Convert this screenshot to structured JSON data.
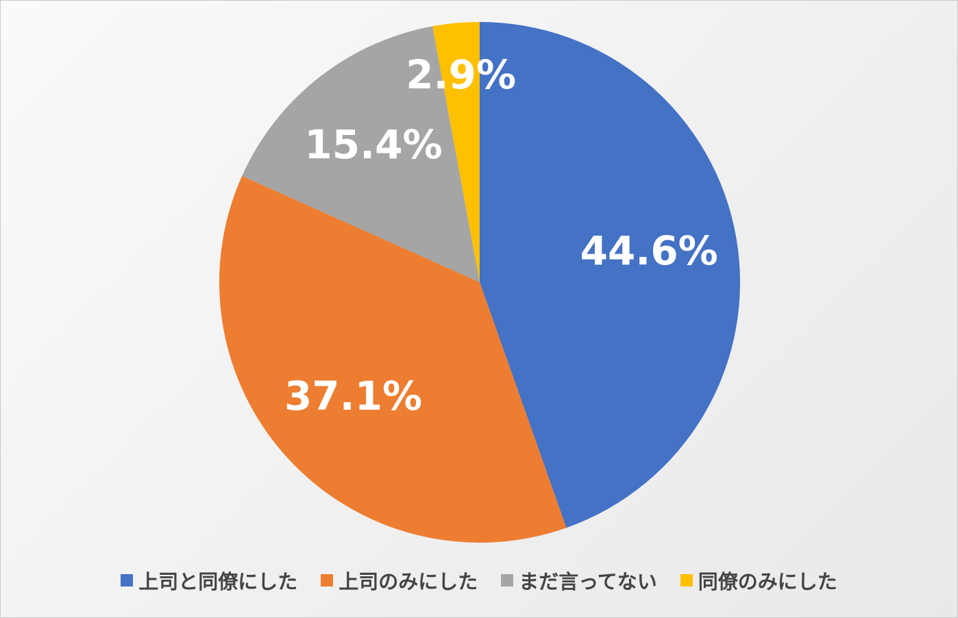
{
  "chart_data": {
    "type": "pie",
    "categories": [
      "上司と同僚にした",
      "上司のみにした",
      "まだ言ってない",
      "同僚のみにした"
    ],
    "values": [
      44.6,
      37.1,
      15.4,
      2.9
    ],
    "value_labels": [
      "44.6%",
      "37.1%",
      "15.4%",
      "2.9%"
    ],
    "colors": [
      "#4472c4",
      "#ed7d31",
      "#a5a5a5",
      "#ffc000"
    ],
    "legend": "bottom"
  }
}
